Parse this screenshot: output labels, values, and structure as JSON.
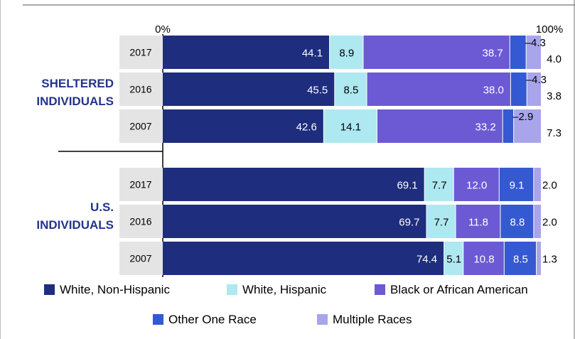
{
  "chart_data": {
    "type": "bar",
    "orientation": "horizontal",
    "stacked": true,
    "normalized": true,
    "x_ticks": [
      "0%",
      "100%"
    ],
    "xlim": [
      0,
      100
    ],
    "groups": [
      {
        "label_lines": [
          "SHELTERED",
          "INDIVIDUALS"
        ],
        "rows": [
          {
            "year": "2017",
            "values": [
              44.1,
              8.9,
              38.7,
              4.3,
              4.0
            ],
            "labels": [
              "44.1",
              "8.9",
              "38.7",
              "–4.3",
              "4.0"
            ]
          },
          {
            "year": "2016",
            "values": [
              45.5,
              8.5,
              38.0,
              4.3,
              3.8
            ],
            "labels": [
              "45.5",
              "8.5",
              "38.0",
              "–4.3",
              "3.8"
            ]
          },
          {
            "year": "2007",
            "values": [
              42.6,
              14.1,
              33.2,
              2.9,
              7.3
            ],
            "labels": [
              "42.6",
              "14.1",
              "33.2",
              "–2.9",
              "7.3"
            ]
          }
        ]
      },
      {
        "label_lines": [
          "U.S.",
          "INDIVIDUALS"
        ],
        "rows": [
          {
            "year": "2017",
            "values": [
              69.1,
              7.7,
              12.0,
              9.1,
              2.0
            ],
            "labels": [
              "69.1",
              "7.7",
              "12.0",
              "9.1",
              "2.0"
            ]
          },
          {
            "year": "2016",
            "values": [
              69.7,
              7.7,
              11.8,
              8.8,
              2.0
            ],
            "labels": [
              "69.7",
              "7.7",
              "11.8",
              "8.8",
              "2.0"
            ]
          },
          {
            "year": "2007",
            "values": [
              74.4,
              5.1,
              10.8,
              8.5,
              1.3
            ],
            "labels": [
              "74.4",
              "5.1",
              "10.8",
              "8.5",
              "1.3"
            ]
          }
        ]
      }
    ],
    "series": [
      {
        "name": "White, Non-Hispanic",
        "color": "#1f2d7e"
      },
      {
        "name": "White, Hispanic",
        "color": "#aee8f1"
      },
      {
        "name": "Black or African American",
        "color": "#6b5ad3"
      },
      {
        "name": "Other One Race",
        "color": "#3559d1"
      },
      {
        "name": "Multiple Races",
        "color": "#a9a5ea"
      }
    ],
    "legend_position": "bottom"
  }
}
